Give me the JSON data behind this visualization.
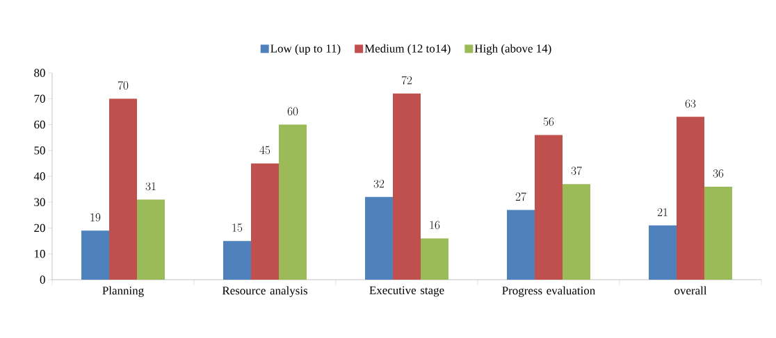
{
  "chart_data": {
    "type": "bar",
    "categories": [
      "Planning",
      "Resource analysis",
      "Executive stage",
      "Progress evaluation",
      "overall"
    ],
    "series": [
      {
        "name": "Low (up to 11)",
        "color": "#4f81bd",
        "values": [
          19,
          15,
          32,
          27,
          21
        ]
      },
      {
        "name": "Medium (12 to14)",
        "color": "#c0504d",
        "values": [
          70,
          45,
          72,
          56,
          63
        ]
      },
      {
        "name": "High (above 14)",
        "color": "#9bbb59",
        "values": [
          31,
          60,
          16,
          37,
          36
        ]
      }
    ],
    "ylim": [
      0,
      80
    ],
    "yticks": [
      0,
      10,
      20,
      30,
      40,
      50,
      60,
      70,
      80
    ],
    "data_labels": true,
    "legend": "top",
    "grid": false
  }
}
